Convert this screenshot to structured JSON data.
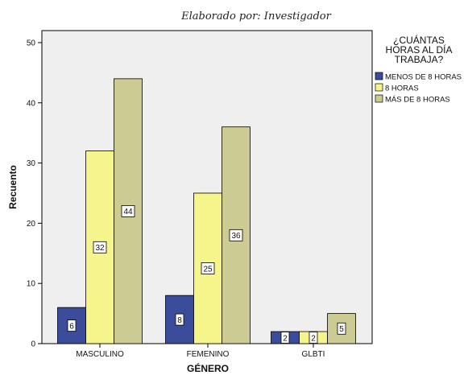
{
  "caption": "Elaborado por: Investigador",
  "chart_data": {
    "type": "bar",
    "xlabel": "GÉNERO",
    "ylabel": "Recuento",
    "categories": [
      "MASCULINO",
      "FEMENINO",
      "GLBTI"
    ],
    "ylim": [
      0,
      52
    ],
    "yticks": [
      0,
      10,
      20,
      30,
      40,
      50
    ],
    "grid": false,
    "legend": {
      "title_lines": [
        "¿CUÁNTAS",
        "HORAS AL DÍA",
        "TRABAJA?"
      ],
      "placement": "right"
    },
    "series": [
      {
        "name": "MENOS DE 8 HORAS",
        "color": "#3b4d9a",
        "values": [
          6,
          8,
          2
        ]
      },
      {
        "name": "8 HORAS",
        "color": "#f5f58c",
        "values": [
          32,
          25,
          2
        ]
      },
      {
        "name": "MÁS DE 8 HORAS",
        "color": "#cdcb94",
        "values": [
          44,
          36,
          5
        ]
      }
    ],
    "plot_background": "#efefef"
  }
}
